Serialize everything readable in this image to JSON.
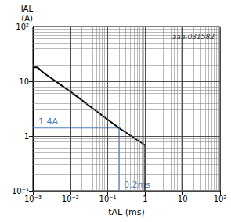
{
  "chart_data": {
    "type": "line",
    "x_label": "tAL (ms)",
    "y_label": "IAL\n(A)",
    "watermark": "aaa-031582",
    "log": true,
    "grid": true,
    "series": [
      {
        "name": "IAL",
        "color": "#000000",
        "x": [
          0.001,
          0.0013,
          0.002,
          0.01,
          0.1,
          0.2,
          1,
          1
        ],
        "values": [
          18,
          18,
          14,
          6.5,
          2,
          1.4,
          0.68,
          0.1
        ]
      }
    ],
    "annotations": [
      {
        "text": "1.4A",
        "y": 1.4,
        "color": "#4a7fc1"
      },
      {
        "text": "0.2ms",
        "x": 0.2,
        "color": "#4a7fc1"
      }
    ],
    "xlim": [
      0.001,
      100
    ],
    "xticks": [
      {
        "value": 0.001,
        "label": "10⁻³"
      },
      {
        "value": 0.01,
        "label": "10⁻²"
      },
      {
        "value": 0.1,
        "label": "10⁻¹"
      },
      1,
      10,
      {
        "value": 100,
        "label": "10²"
      }
    ],
    "ylim": [
      0.1,
      100
    ],
    "yticks": [
      {
        "value": 0.1,
        "label": "10⁻¹"
      },
      1,
      10,
      {
        "value": 100,
        "label": "10²"
      }
    ]
  }
}
